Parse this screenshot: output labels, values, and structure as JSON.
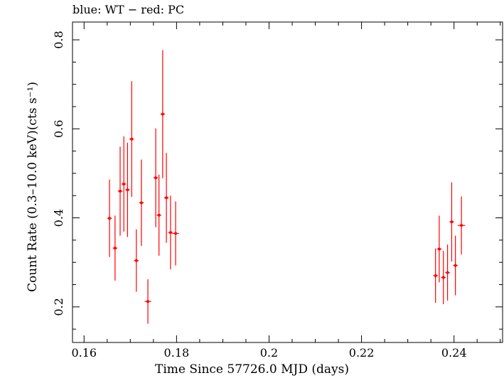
{
  "chart_data": {
    "type": "scatter",
    "title": "blue: WT − red: PC",
    "xlabel": "Time Since 57726.0 MJD (days)",
    "ylabel": "Count Rate (0.3–10.0 keV)(cts s⁻¹)",
    "xlim": [
      0.1575,
      0.2505
    ],
    "ylim": [
      0.12,
      0.84
    ],
    "xticks": [
      0.16,
      0.18,
      0.2,
      0.22,
      0.24
    ],
    "xtick_labels": [
      "0.16",
      "0.18",
      "0.2",
      "0.22",
      "0.24"
    ],
    "yticks": [
      0.2,
      0.4,
      0.6,
      0.8
    ],
    "ytick_labels": [
      "0.2",
      "0.4",
      "0.6",
      "0.8"
    ],
    "series": [
      {
        "name": "PC",
        "color": "#ff0000",
        "points": [
          {
            "x": 0.1655,
            "y": 0.399,
            "xerr": 0.0005,
            "yerr": 0.087
          },
          {
            "x": 0.1667,
            "y": 0.332,
            "xerr": 0.0005,
            "yerr": 0.073
          },
          {
            "x": 0.1678,
            "y": 0.46,
            "xerr": 0.0005,
            "yerr": 0.1
          },
          {
            "x": 0.1686,
            "y": 0.476,
            "xerr": 0.0005,
            "yerr": 0.107
          },
          {
            "x": 0.1694,
            "y": 0.463,
            "xerr": 0.0005,
            "yerr": 0.106
          },
          {
            "x": 0.1703,
            "y": 0.577,
            "xerr": 0.0005,
            "yerr": 0.13
          },
          {
            "x": 0.1713,
            "y": 0.304,
            "xerr": 0.0005,
            "yerr": 0.07
          },
          {
            "x": 0.1724,
            "y": 0.434,
            "xerr": 0.0005,
            "yerr": 0.097
          },
          {
            "x": 0.1738,
            "y": 0.212,
            "xerr": 0.0007,
            "yerr": 0.05
          },
          {
            "x": 0.1755,
            "y": 0.49,
            "xerr": 0.0005,
            "yerr": 0.111
          },
          {
            "x": 0.1762,
            "y": 0.406,
            "xerr": 0.0005,
            "yerr": 0.091
          },
          {
            "x": 0.177,
            "y": 0.633,
            "xerr": 0.0005,
            "yerr": 0.144
          },
          {
            "x": 0.1778,
            "y": 0.445,
            "xerr": 0.0005,
            "yerr": 0.101
          },
          {
            "x": 0.1787,
            "y": 0.367,
            "xerr": 0.0005,
            "yerr": 0.083
          },
          {
            "x": 0.1798,
            "y": 0.365,
            "xerr": 0.0007,
            "yerr": 0.072
          },
          {
            "x": 0.236,
            "y": 0.27,
            "xerr": 0.0005,
            "yerr": 0.061
          },
          {
            "x": 0.2368,
            "y": 0.33,
            "xerr": 0.0005,
            "yerr": 0.075
          },
          {
            "x": 0.2377,
            "y": 0.266,
            "xerr": 0.0005,
            "yerr": 0.06
          },
          {
            "x": 0.2386,
            "y": 0.277,
            "xerr": 0.0005,
            "yerr": 0.063
          },
          {
            "x": 0.2395,
            "y": 0.391,
            "xerr": 0.0005,
            "yerr": 0.089
          },
          {
            "x": 0.2403,
            "y": 0.293,
            "xerr": 0.0005,
            "yerr": 0.067
          },
          {
            "x": 0.2416,
            "y": 0.383,
            "xerr": 0.0008,
            "yerr": 0.065
          }
        ]
      }
    ]
  }
}
